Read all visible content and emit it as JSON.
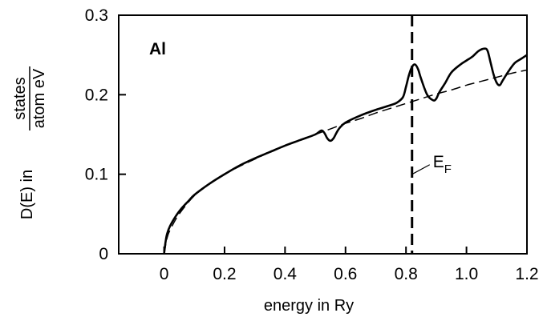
{
  "chart_data": {
    "type": "line",
    "panel_label": "Al",
    "xlabel": "energy in Ry",
    "ylabel": {
      "prefix": "D(E) in",
      "numerator": "states",
      "denominator": "atom eV"
    },
    "xlim": [
      -0.15,
      1.2
    ],
    "ylim": [
      0,
      0.3
    ],
    "x_ticks": [
      0,
      0.2,
      0.4,
      0.6,
      0.8,
      1.0,
      1.2
    ],
    "x_tick_labels": [
      "0",
      "0.2",
      "0.4",
      "0.6",
      "0.8",
      "1.0",
      "1.2"
    ],
    "y_ticks": [
      0,
      0.1,
      0.2,
      0.3
    ],
    "y_tick_labels": [
      "0",
      "0.1",
      "0.2",
      "0.3"
    ],
    "grid": false,
    "fermi_level": {
      "x": 0.82,
      "label_main": "E",
      "label_sub": "F"
    },
    "series": [
      {
        "style": "solid",
        "x": [
          0,
          0.005,
          0.01,
          0.02,
          0.04,
          0.06,
          0.08,
          0.1,
          0.15,
          0.2,
          0.25,
          0.3,
          0.35,
          0.4,
          0.45,
          0.5,
          0.52,
          0.53,
          0.54,
          0.55,
          0.56,
          0.57,
          0.58,
          0.6,
          0.65,
          0.7,
          0.75,
          0.77,
          0.79,
          0.8,
          0.81,
          0.82,
          0.83,
          0.84,
          0.85,
          0.87,
          0.89,
          0.9,
          0.91,
          0.93,
          0.95,
          0.98,
          1.0,
          1.02,
          1.04,
          1.06,
          1.07,
          1.08,
          1.09,
          1.1,
          1.11,
          1.12,
          1.14,
          1.16,
          1.18,
          1.2
        ],
        "y": [
          0,
          0.015,
          0.025,
          0.035,
          0.048,
          0.058,
          0.066,
          0.074,
          0.088,
          0.1,
          0.111,
          0.12,
          0.128,
          0.136,
          0.143,
          0.15,
          0.155,
          0.152,
          0.145,
          0.142,
          0.145,
          0.152,
          0.158,
          0.165,
          0.174,
          0.181,
          0.187,
          0.19,
          0.197,
          0.21,
          0.225,
          0.235,
          0.238,
          0.232,
          0.22,
          0.2,
          0.193,
          0.195,
          0.203,
          0.215,
          0.228,
          0.238,
          0.243,
          0.248,
          0.255,
          0.258,
          0.255,
          0.24,
          0.225,
          0.215,
          0.212,
          0.218,
          0.23,
          0.24,
          0.245,
          0.25
        ]
      },
      {
        "style": "dashed",
        "x": [
          0,
          0.01,
          0.02,
          0.05,
          0.1,
          0.15,
          0.2,
          0.25,
          0.3,
          0.35,
          0.4,
          0.45,
          0.5,
          0.55,
          0.6,
          0.65,
          0.7,
          0.75,
          0.8,
          0.85,
          0.9,
          0.95,
          1.0,
          1.05,
          1.1,
          1.15,
          1.2
        ],
        "y": [
          0,
          0.02,
          0.03,
          0.05,
          0.073,
          0.088,
          0.1,
          0.11,
          0.119,
          0.128,
          0.136,
          0.143,
          0.15,
          0.157,
          0.164,
          0.17,
          0.177,
          0.183,
          0.189,
          0.195,
          0.201,
          0.206,
          0.212,
          0.217,
          0.222,
          0.227,
          0.231
        ]
      }
    ]
  }
}
